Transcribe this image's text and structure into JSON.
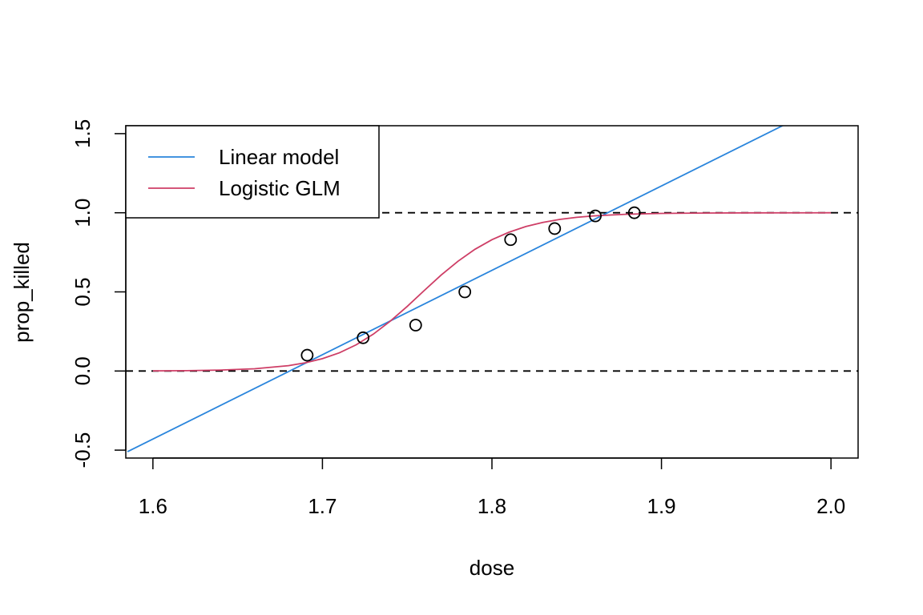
{
  "chart_data": {
    "type": "scatter",
    "title": "",
    "xlabel": "dose",
    "ylabel": "prop_killed",
    "xlim": [
      1.6,
      2.0
    ],
    "ylim": [
      -0.5,
      1.5
    ],
    "x_ticks": [
      1.6,
      1.7,
      1.8,
      1.9,
      2.0
    ],
    "x_tick_labels": [
      "1.6",
      "1.7",
      "1.8",
      "1.9",
      "2.0"
    ],
    "y_ticks": [
      -0.5,
      0.0,
      0.5,
      1.0,
      1.5
    ],
    "y_tick_labels": [
      "-0.5",
      "0.0",
      "0.5",
      "1.0",
      "1.5"
    ],
    "grid": false,
    "legend_position": "top-left",
    "reference_lines": [
      0.0,
      1.0
    ],
    "points": {
      "x": [
        1.691,
        1.724,
        1.755,
        1.784,
        1.811,
        1.837,
        1.861,
        1.884
      ],
      "y": [
        0.1,
        0.21,
        0.29,
        0.5,
        0.83,
        0.9,
        0.98,
        1.0
      ]
    },
    "series": [
      {
        "name": "Linear model",
        "color": "#2A85DC",
        "x": [
          1.585,
          1.977
        ],
        "y": [
          -0.51,
          1.58
        ]
      },
      {
        "name": "Logistic GLM",
        "color": "#CE3E66",
        "x": [
          1.6,
          1.62,
          1.64,
          1.66,
          1.68,
          1.69,
          1.7,
          1.71,
          1.72,
          1.73,
          1.74,
          1.75,
          1.76,
          1.77,
          1.78,
          1.79,
          1.8,
          1.81,
          1.82,
          1.83,
          1.84,
          1.85,
          1.86,
          1.87,
          1.88,
          1.9,
          1.92,
          1.95,
          2.0
        ],
        "y": [
          0.001,
          0.002,
          0.006,
          0.014,
          0.034,
          0.052,
          0.078,
          0.115,
          0.166,
          0.233,
          0.315,
          0.408,
          0.508,
          0.606,
          0.694,
          0.769,
          0.83,
          0.877,
          0.913,
          0.939,
          0.958,
          0.971,
          0.98,
          0.986,
          0.991,
          0.996,
          0.998,
          0.9995,
          1.0
        ]
      }
    ]
  }
}
